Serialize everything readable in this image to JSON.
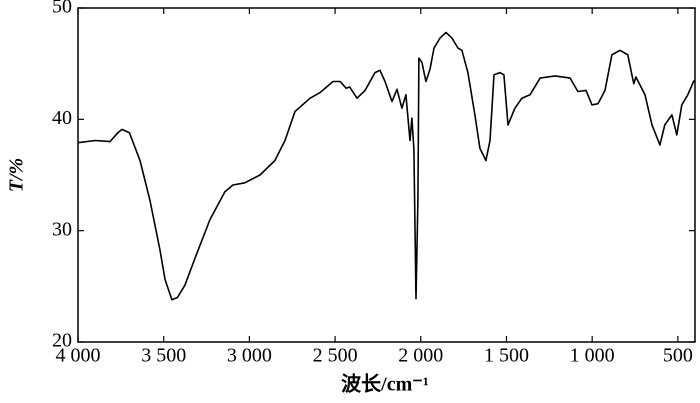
{
  "chart_data": {
    "type": "line",
    "x_label": "波长/cm⁻¹",
    "y_label": "T/%",
    "x": [
      4000,
      3901,
      3813,
      3767,
      3743,
      3700,
      3638,
      3580,
      3522,
      3492,
      3452,
      3420,
      3376,
      3318,
      3230,
      3143,
      3096,
      3026,
      2938,
      2851,
      2792,
      2734,
      2646,
      2588,
      2512,
      2471,
      2436,
      2415,
      2372,
      2325,
      2267,
      2238,
      2209,
      2168,
      2139,
      2110,
      2087,
      2063,
      2052,
      2040,
      2028,
      2017,
      2011,
      1993,
      1970,
      1946,
      1923,
      1888,
      1853,
      1818,
      1783,
      1760,
      1725,
      1684,
      1655,
      1620,
      1596,
      1573,
      1538,
      1515,
      1491,
      1451,
      1410,
      1363,
      1304,
      1217,
      1129,
      1083,
      1036,
      1001,
      966,
      925,
      885,
      838,
      792,
      768,
      757,
      745,
      692,
      651,
      605,
      576,
      535,
      506,
      477,
      442,
      406
    ],
    "values": [
      37.9,
      38.1,
      38.0,
      38.8,
      39.1,
      38.8,
      36.3,
      32.7,
      28.3,
      25.6,
      23.8,
      24.0,
      25.1,
      27.5,
      31.0,
      33.5,
      34.1,
      34.3,
      35.0,
      36.3,
      38.1,
      40.7,
      41.9,
      42.4,
      43.4,
      43.4,
      42.8,
      42.9,
      41.9,
      42.6,
      44.2,
      44.4,
      43.4,
      41.6,
      42.7,
      41.0,
      42.2,
      38.1,
      40.1,
      37.3,
      23.9,
      32.7,
      45.5,
      45.1,
      43.4,
      44.5,
      46.4,
      47.3,
      47.8,
      47.3,
      46.4,
      46.2,
      44.2,
      40.4,
      37.4,
      36.3,
      38.1,
      44.0,
      44.2,
      44.0,
      39.5,
      41.0,
      41.9,
      42.2,
      43.7,
      43.9,
      43.7,
      42.5,
      42.6,
      41.3,
      41.4,
      42.6,
      45.8,
      46.2,
      45.8,
      44.0,
      43.2,
      43.8,
      42.2,
      39.5,
      37.7,
      39.5,
      40.4,
      38.6,
      41.3,
      42.2,
      43.5
    ],
    "color": "#000000",
    "xlim": [
      4000,
      400
    ],
    "ylim": [
      20,
      50
    ],
    "xticks": [
      {
        "value": 4000,
        "label": "4 000"
      },
      {
        "value": 3500,
        "label": "3 500"
      },
      {
        "value": 3000,
        "label": "3 000"
      },
      {
        "value": 2500,
        "label": "2 500"
      },
      {
        "value": 2000,
        "label": "2 000"
      },
      {
        "value": 1500,
        "label": "1 500"
      },
      {
        "value": 1000,
        "label": "1 000"
      },
      500
    ],
    "yticks": [
      20,
      30,
      40,
      50
    ]
  }
}
